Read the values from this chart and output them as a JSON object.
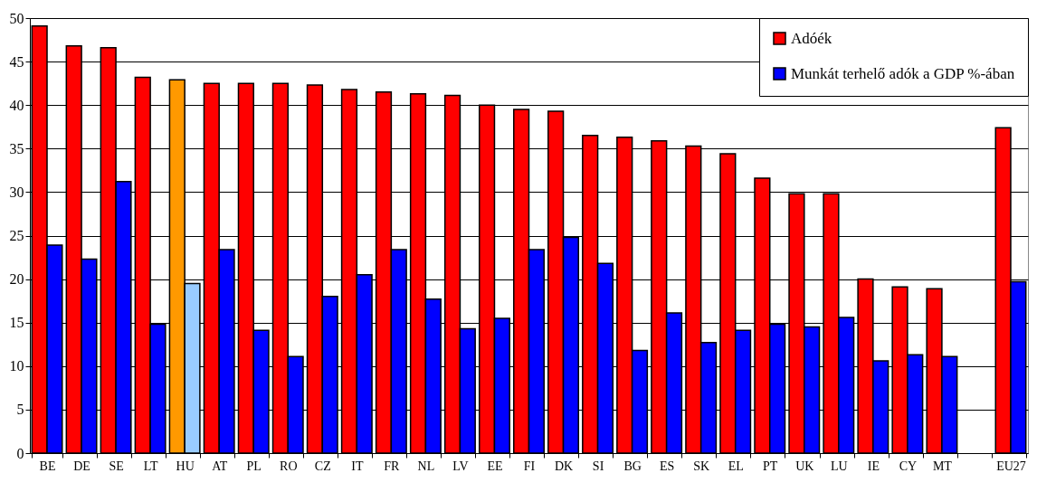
{
  "chart_data": {
    "type": "bar",
    "categories": [
      "BE",
      "DE",
      "SE",
      "LT",
      "HU",
      "AT",
      "PL",
      "RO",
      "CZ",
      "IT",
      "FR",
      "NL",
      "LV",
      "EE",
      "FI",
      "DK",
      "SI",
      "BG",
      "ES",
      "SK",
      "EL",
      "PT",
      "UK",
      "LU",
      "IE",
      "CY",
      "MT",
      null,
      "EU27"
    ],
    "series": [
      {
        "name": "Adóék",
        "color": "#ff0000",
        "colors": [
          "#ff0000",
          "#ff0000",
          "#ff0000",
          "#ff0000",
          "#ff9900",
          "#ff0000",
          "#ff0000",
          "#ff0000",
          "#ff0000",
          "#ff0000",
          "#ff0000",
          "#ff0000",
          "#ff0000",
          "#ff0000",
          "#ff0000",
          "#ff0000",
          "#ff0000",
          "#ff0000",
          "#ff0000",
          "#ff0000",
          "#ff0000",
          "#ff0000",
          "#ff0000",
          "#ff0000",
          "#ff0000",
          "#ff0000",
          "#ff0000",
          "#ff0000",
          "#ff0000"
        ],
        "values": [
          49.1,
          46.8,
          46.6,
          43.2,
          42.9,
          42.5,
          42.5,
          42.5,
          42.3,
          41.8,
          41.5,
          41.3,
          41.1,
          40.0,
          39.5,
          39.3,
          36.5,
          36.3,
          35.9,
          35.3,
          34.4,
          31.6,
          29.8,
          29.8,
          20.0,
          19.1,
          18.9,
          null,
          37.4
        ]
      },
      {
        "name": "Munkát terhelő adók a GDP %-ában",
        "color": "#0000ff",
        "colors": [
          "#0000ff",
          "#0000ff",
          "#0000ff",
          "#0000ff",
          "#99ccff",
          "#0000ff",
          "#0000ff",
          "#0000ff",
          "#0000ff",
          "#0000ff",
          "#0000ff",
          "#0000ff",
          "#0000ff",
          "#0000ff",
          "#0000ff",
          "#0000ff",
          "#0000ff",
          "#0000ff",
          "#0000ff",
          "#0000ff",
          "#0000ff",
          "#0000ff",
          "#0000ff",
          "#0000ff",
          "#0000ff",
          "#0000ff",
          "#0000ff",
          "#0000ff",
          "#0000ff"
        ],
        "values": [
          23.9,
          22.3,
          31.2,
          14.8,
          19.5,
          23.4,
          14.1,
          11.1,
          18.0,
          20.5,
          23.4,
          17.7,
          14.3,
          15.5,
          23.4,
          24.8,
          21.8,
          11.8,
          16.1,
          12.7,
          14.1,
          14.8,
          14.5,
          15.6,
          10.6,
          11.3,
          11.1,
          null,
          19.7
        ]
      }
    ],
    "ylim": [
      0,
      50
    ],
    "yticks": [
      0,
      5,
      10,
      15,
      20,
      25,
      30,
      35,
      40,
      45,
      50
    ],
    "grid": "y",
    "legend": "top right"
  }
}
